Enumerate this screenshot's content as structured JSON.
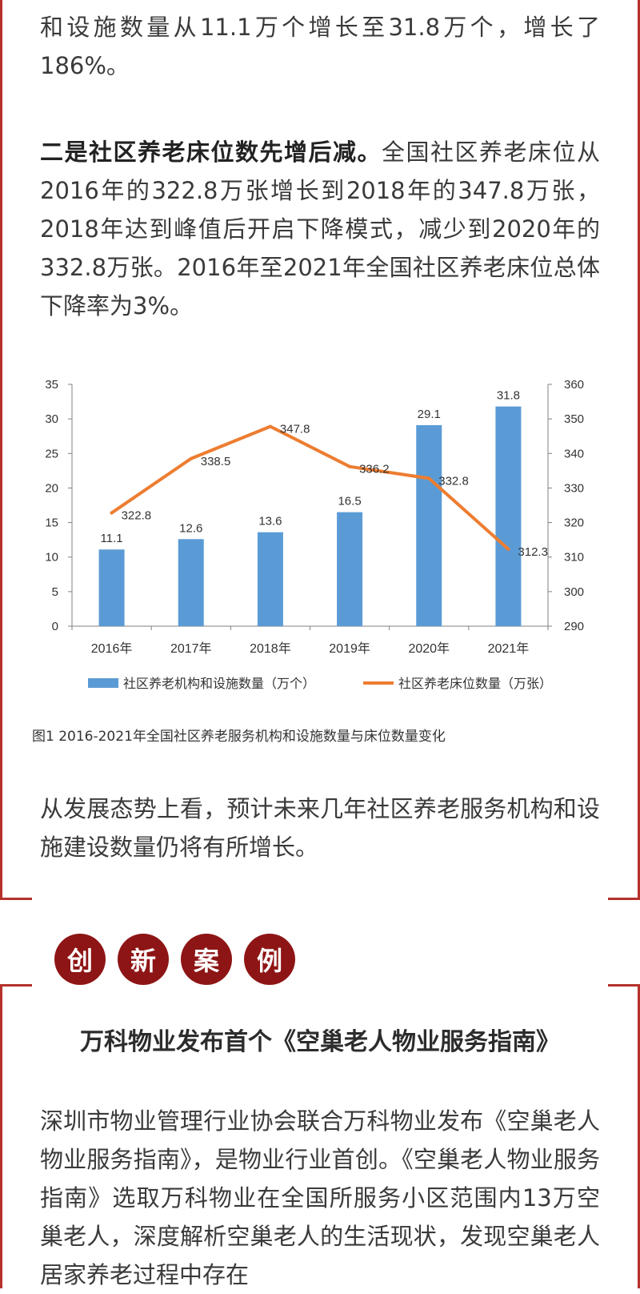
{
  "article": {
    "para1": "和设施数量从11.1万个增长至31.8万个，增长了186%。",
    "para2_bold": "二是社区养老床位数先增后减。",
    "para2_rest": "全国社区养老床位从2016年的322.8万张增长到2018年的347.8万张，2018年达到峰值后开启下降模式，减少到2020年的332.8万张。2016年至2021年全国社区养老床位总体下降率为3%。",
    "figure_caption": "图1  2016-2021年全国社区养老服务机构和设施数量与床位数量变化",
    "para3": "从发展态势上看，预计未来几年社区养老服务机构和设施建设数量仍将有所增长。"
  },
  "section": {
    "badges": [
      "创",
      "新",
      "案",
      "例"
    ],
    "title": "万科物业发布首个《空巢老人物业服务指南》",
    "para": "深圳市物业管理行业协会联合万科物业发布《空巢老人物业服务指南》，是物业行业首创。《空巢老人物业服务指南》选取万科物业在全国所服务小区范围内13万空巢老人，深度解析空巢老人的生活现状，发现空巢老人居家养老过程中存在"
  },
  "colors": {
    "frame": "#b5322a",
    "badge": "#8e1515",
    "bar": "#5b9bd5",
    "line": "#ed7d31"
  },
  "chart_data": {
    "type": "bar",
    "categories": [
      "2016年",
      "2017年",
      "2018年",
      "2019年",
      "2020年",
      "2021年"
    ],
    "series": [
      {
        "name": "社区养老机构和设施数量（万个）",
        "type": "bar",
        "axis": "left",
        "values": [
          11.1,
          12.6,
          13.6,
          16.5,
          29.1,
          31.8
        ]
      },
      {
        "name": "社区养老床位数量（万张）",
        "type": "line",
        "axis": "right",
        "values": [
          322.8,
          338.5,
          347.8,
          336.2,
          332.8,
          312.3
        ]
      }
    ],
    "y_left": {
      "ylim": [
        0,
        35
      ],
      "ticks": [
        0,
        5,
        10,
        15,
        20,
        25,
        30,
        35
      ]
    },
    "y_right": {
      "ylim": [
        290,
        360
      ],
      "ticks": [
        290,
        300,
        310,
        320,
        330,
        340,
        350,
        360
      ]
    },
    "legend_position": "bottom",
    "grid": false
  }
}
